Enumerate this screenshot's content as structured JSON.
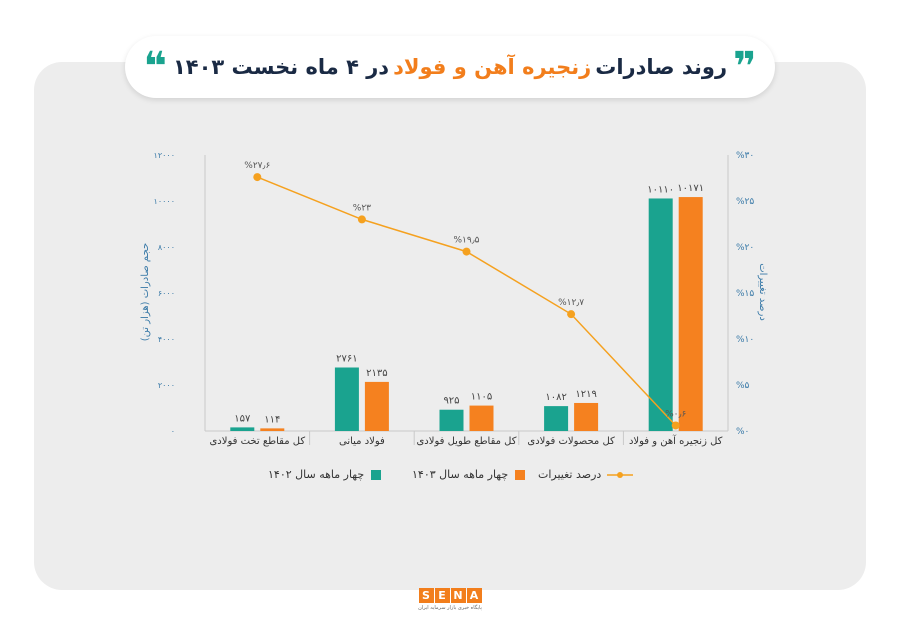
{
  "header": {
    "title_part1": "روند صادرات",
    "title_accent": "زنجیره آهن و فولاد",
    "title_part2": "در ۴ ماه نخست ۱۴۰۳",
    "quote_open": "❞",
    "quote_close": "❝"
  },
  "chart_data": {
    "type": "bar",
    "categories": [
      "کل زنجیره آهن و فولاد",
      "کل محصولات فولادی",
      "کل مقاطع طویل فولادی",
      "فولاد میانی",
      "کل مقاطع تخت فولادی"
    ],
    "series": [
      {
        "name": "چهار ماهه سال ۱۴۰۲",
        "values": [
          10110,
          1082,
          925,
          2761,
          157
        ],
        "labels": [
          "۱۰۱۱۰",
          "۱۰۸۲",
          "۹۲۵",
          "۲۷۶۱",
          "۱۵۷"
        ],
        "color": "#1aa38f"
      },
      {
        "name": "چهار ماهه سال ۱۴۰۳",
        "values": [
          10171,
          1219,
          1105,
          2135,
          114
        ],
        "labels": [
          "۱۰۱۷۱",
          "۱۲۱۹",
          "۱۱۰۵",
          "۲۱۳۵",
          "۱۱۴"
        ],
        "color": "#f5811f"
      }
    ],
    "line_series": {
      "name": "درصد تغییرات",
      "values": [
        0.6,
        12.7,
        19.5,
        23,
        27.6
      ],
      "labels": [
        "%۰٫۶",
        "%۱۲٫۷",
        "%۱۹٫۵",
        "%۲۳",
        "%۲۷٫۶"
      ],
      "color": "#f5a11f"
    },
    "ylabel_left": "حجم صادرات (هزار تن)",
    "ylabel_right": "درصد تغییرات",
    "ylim_left": [
      0,
      12000
    ],
    "ylim_right": [
      0,
      30
    ],
    "yticks_left": [
      "۰",
      "۲۰۰۰",
      "۴۰۰۰",
      "۶۰۰۰",
      "۸۰۰۰",
      "۱۰۰۰۰",
      "۱۲۰۰۰"
    ],
    "yticks_right": [
      "%۰",
      "%۵",
      "%۱۰",
      "%۱۵",
      "%۲۰",
      "%۲۵",
      "%۳۰"
    ],
    "grid": false,
    "legend_position": "bottom"
  },
  "logo": {
    "letters": [
      "S",
      "E",
      "N",
      "A"
    ],
    "subtitle": "پایگاه خبری بازار سرمایه ایران"
  }
}
